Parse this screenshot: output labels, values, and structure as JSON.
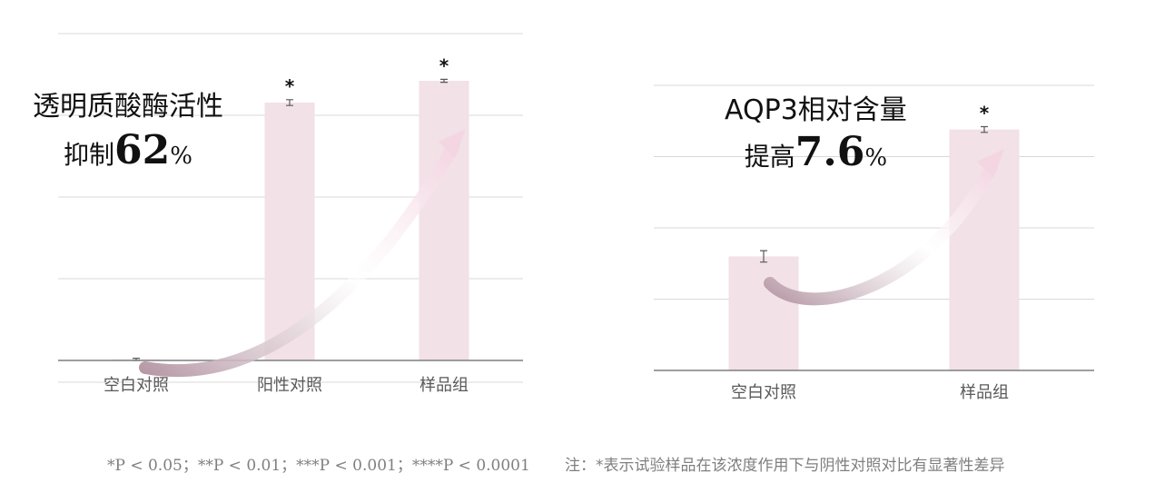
{
  "colors": {
    "bar": "#f2e1e7",
    "arrow_dark": "#b79aa6",
    "arrow_light": "#f4d6e2",
    "grid": "#d9d9d9",
    "axis": "#7f7f7f",
    "label": "#595959"
  },
  "chart_data": [
    {
      "type": "bar",
      "categories": [
        "空白对照",
        "阳性对照",
        "样品组"
      ],
      "values": [
        0.3,
        71,
        77
      ],
      "errors": [
        0.3,
        0.8,
        0.4
      ],
      "significance": [
        "",
        "*",
        "*"
      ],
      "ylim": [
        0,
        90
      ],
      "grid": true,
      "callout": {
        "title": "透明质酸酶活性",
        "prefix": "抑制",
        "number": "62",
        "unit": "%"
      }
    },
    {
      "type": "bar",
      "categories": [
        "空白对照",
        "样品组"
      ],
      "values": [
        0.8,
        1.69
      ],
      "errors": [
        0.04,
        0.02
      ],
      "significance": [
        "",
        "*"
      ],
      "ylim": [
        0,
        2.0
      ],
      "grid": true,
      "callout": {
        "title": "AQP3相对含量",
        "prefix": "提高",
        "number": "7.6",
        "unit": "%"
      }
    }
  ],
  "footnotes": {
    "left": "*P < 0.05；**P < 0.01；***P < 0.001；****P < 0.0001",
    "right": "注：*表示试验样品在该浓度作用下与阴性对照对比有显著性差异"
  }
}
